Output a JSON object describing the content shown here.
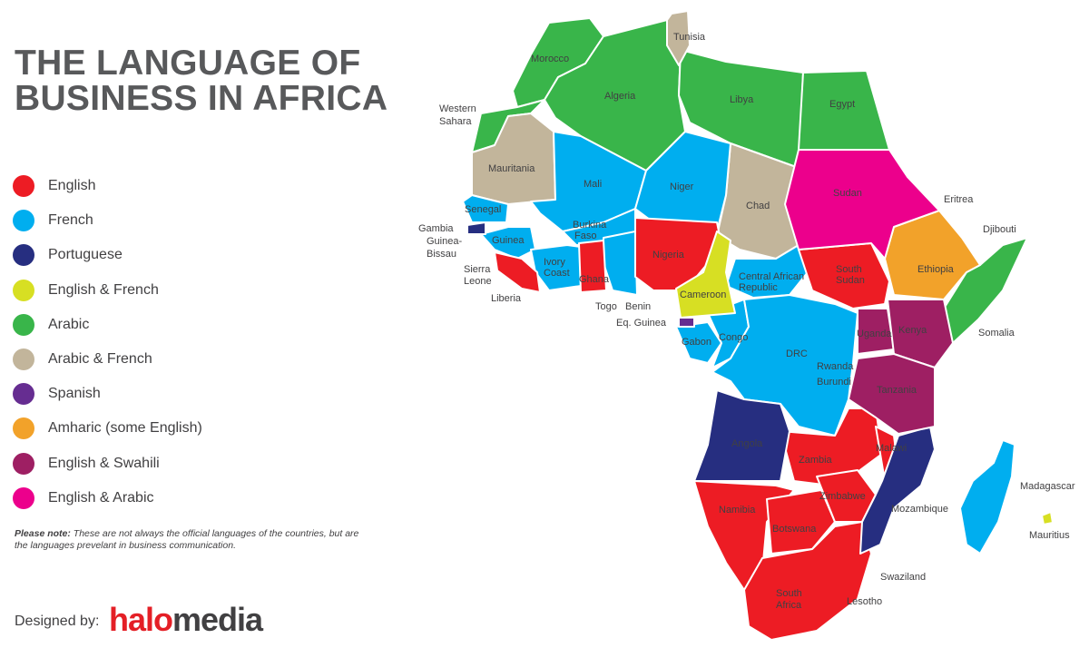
{
  "title_line1": "THE LANGUAGE OF",
  "title_line2": "BUSINESS IN AFRICA",
  "colors": {
    "english": "#ed1c24",
    "french": "#00aeef",
    "portuguese": "#262e80",
    "english_french": "#d7df23",
    "arabic": "#39b54a",
    "arabic_french": "#c2b59b",
    "spanish": "#662d91",
    "amharic": "#f2a22a",
    "english_swahili": "#9e1f63",
    "english_arabic": "#ec008c"
  },
  "legend": [
    {
      "label": "English",
      "color": "#ed1c24"
    },
    {
      "label": "French",
      "color": "#00aeef"
    },
    {
      "label": "Portuguese",
      "color": "#262e80"
    },
    {
      "label": "English & French",
      "color": "#d7df23"
    },
    {
      "label": "Arabic",
      "color": "#39b54a"
    },
    {
      "label": "Arabic & French",
      "color": "#c2b59b"
    },
    {
      "label": "Spanish",
      "color": "#662d91"
    },
    {
      "label": "Amharic (some English)",
      "color": "#f2a22a"
    },
    {
      "label": "English & Swahili",
      "color": "#9e1f63"
    },
    {
      "label": "English & Arabic",
      "color": "#ec008c"
    }
  ],
  "note_bold": "Please note:",
  "note_text": "These are not always the official languages of the countries, but are the languages prevelant in business communication.",
  "credit": "Designed by:",
  "logo_part1": "halo",
  "logo_part2": "media",
  "countries": {
    "tunisia": "Tunisia",
    "morocco": "Morocco",
    "algeria": "Algeria",
    "libya": "Libya",
    "egypt": "Egypt",
    "western_sahara_1": "Western",
    "western_sahara_2": "Sahara",
    "mauritania": "Mauritania",
    "mali": "Mali",
    "niger": "Niger",
    "chad": "Chad",
    "sudan": "Sudan",
    "eritrea": "Eritrea",
    "djibouti": "Djibouti",
    "senegal": "Senegal",
    "gambia": "Gambia",
    "guinea_bissau_1": "Guinea-",
    "guinea_bissau_2": "Bissau",
    "guinea": "Guinea",
    "burkina_1": "Burkina",
    "burkina_2": "Faso",
    "ivory_1": "Ivory",
    "ivory_2": "Coast",
    "ghana": "Ghana",
    "nigeria": "Nigeria",
    "sierra_1": "Sierra",
    "sierra_2": "Leone",
    "liberia": "Liberia",
    "togo": "Togo",
    "benin": "Benin",
    "eq_guinea": "Eq. Guinea",
    "cameroon": "Cameroon",
    "car_1": "Central African",
    "car_2": "Republic",
    "south_sudan_1": "South",
    "south_sudan_2": "Sudan",
    "ethiopia": "Ethiopia",
    "somalia": "Somalia",
    "gabon": "Gabon",
    "congo": "Congo",
    "drc": "DRC",
    "uganda": "Uganda",
    "kenya": "Kenya",
    "rwanda": "Rwanda",
    "burundi": "Burundi",
    "tanzania": "Tanzania",
    "angola": "Angola",
    "zambia": "Zambia",
    "malawi": "Malawi",
    "madagascar": "Madagascar",
    "mauritius": "Mauritius",
    "namibia": "Namibia",
    "zimbabwe": "Zimbabwe",
    "mozambique": "Mozambique",
    "botswana": "Botswana",
    "swaziland": "Swaziland",
    "south_africa_1": "South",
    "south_africa_2": "Africa",
    "lesotho": "Lesotho"
  }
}
